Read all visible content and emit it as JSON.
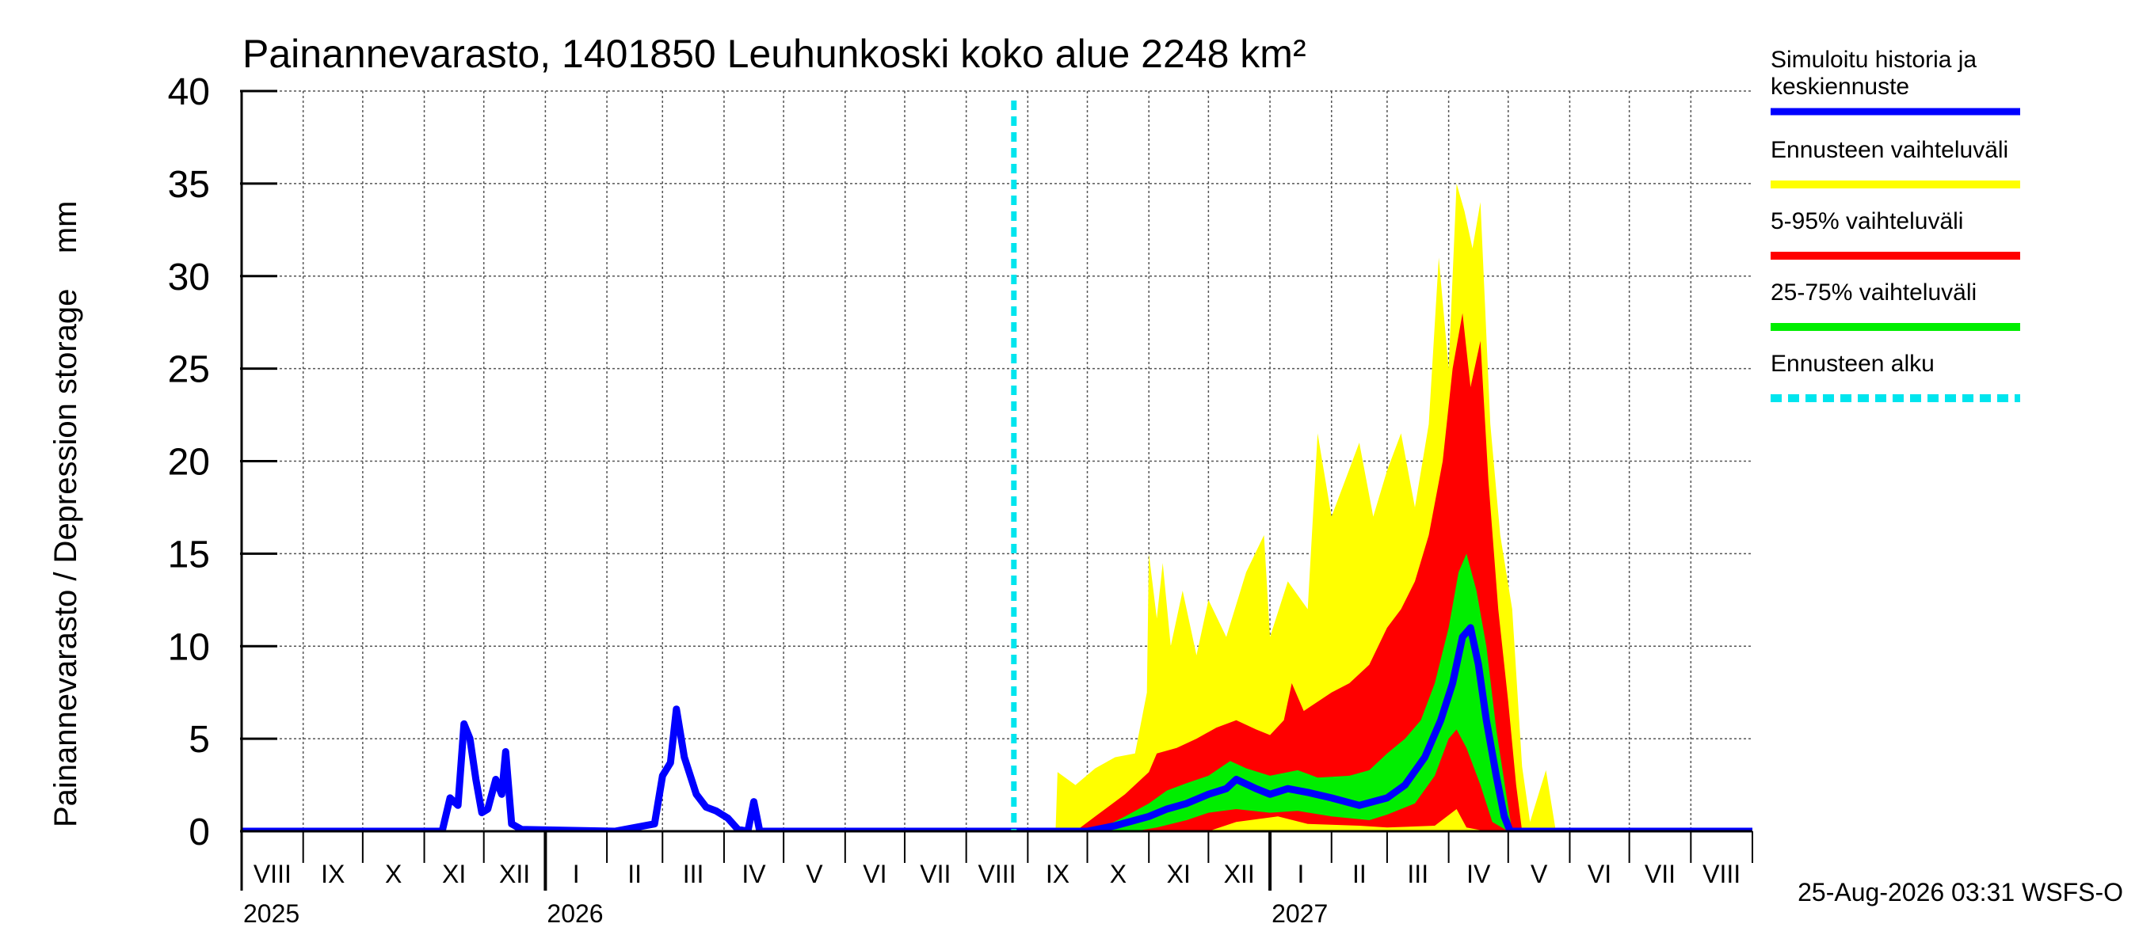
{
  "chart_data": {
    "type": "area",
    "title": "Painannevarasto, 1401850 Leuhunkoski koko alue 2248 km²",
    "ylabel": "Painannevarasto / Depression storage    mm",
    "ylim": [
      0,
      40
    ],
    "yticks": [
      0,
      5,
      10,
      15,
      20,
      25,
      30,
      35,
      40
    ],
    "xlim": [
      "2025-08-01",
      "2027-09-01"
    ],
    "grid": true,
    "legend_position": "right",
    "timestamp": "25-Aug-2026 03:31 WSFS-O",
    "forecast_start": "2026-08-25",
    "months": [
      {
        "label": "VIII",
        "start": "2025-08-01"
      },
      {
        "label": "IX",
        "start": "2025-09-01"
      },
      {
        "label": "X",
        "start": "2025-10-01"
      },
      {
        "label": "XI",
        "start": "2025-11-01"
      },
      {
        "label": "XII",
        "start": "2025-12-01"
      },
      {
        "label": "I",
        "start": "2026-01-01"
      },
      {
        "label": "II",
        "start": "2026-02-01"
      },
      {
        "label": "III",
        "start": "2026-03-01"
      },
      {
        "label": "IV",
        "start": "2026-04-01"
      },
      {
        "label": "V",
        "start": "2026-05-01"
      },
      {
        "label": "VI",
        "start": "2026-06-01"
      },
      {
        "label": "VII",
        "start": "2026-07-01"
      },
      {
        "label": "VIII",
        "start": "2026-08-01"
      },
      {
        "label": "IX",
        "start": "2026-09-01"
      },
      {
        "label": "X",
        "start": "2026-10-01"
      },
      {
        "label": "XI",
        "start": "2026-11-01"
      },
      {
        "label": "XII",
        "start": "2026-12-01"
      },
      {
        "label": "I",
        "start": "2027-01-01"
      },
      {
        "label": "II",
        "start": "2027-02-01"
      },
      {
        "label": "III",
        "start": "2027-03-01"
      },
      {
        "label": "IV",
        "start": "2027-04-01"
      },
      {
        "label": "V",
        "start": "2027-05-01"
      },
      {
        "label": "VI",
        "start": "2027-06-01"
      },
      {
        "label": "VII",
        "start": "2027-07-01"
      },
      {
        "label": "VIII",
        "start": "2027-08-01"
      }
    ],
    "years": [
      {
        "label": "2025",
        "start": "2025-08-01"
      },
      {
        "label": "2026",
        "start": "2026-01-01"
      },
      {
        "label": "2027",
        "start": "2027-01-01"
      }
    ],
    "colors": {
      "history": "#0000ff",
      "range_full": "#ffff00",
      "range_5_95": "#ff0000",
      "range_25_75": "#00ee00",
      "forecast_start": "#00e5ee",
      "grid": "#555555"
    },
    "legend": [
      {
        "label": "Simuloitu historia ja keskiennuste",
        "color": "#0000ff",
        "style": "solid"
      },
      {
        "label": "Ennusteen vaihteluväli",
        "color": "#ffff00",
        "style": "solid"
      },
      {
        "label": "5-95% vaihteluväli",
        "color": "#ff0000",
        "style": "solid"
      },
      {
        "label": "25-75% vaihteluväli",
        "color": "#00ee00",
        "style": "solid"
      },
      {
        "label": "Ennusteen alku",
        "color": "#00e5ee",
        "style": "dashed"
      }
    ],
    "series": [
      {
        "name": "Simuloitu historia ja keskiennuste",
        "kind": "line",
        "points": [
          [
            "2025-08-01",
            0
          ],
          [
            "2025-11-10",
            0
          ],
          [
            "2025-11-14",
            1.8
          ],
          [
            "2025-11-18",
            1.4
          ],
          [
            "2025-11-21",
            5.8
          ],
          [
            "2025-11-24",
            5.0
          ],
          [
            "2025-11-27",
            2.8
          ],
          [
            "2025-11-30",
            1.0
          ],
          [
            "2025-12-03",
            1.2
          ],
          [
            "2025-12-07",
            2.8
          ],
          [
            "2025-12-10",
            2.0
          ],
          [
            "2025-12-12",
            4.3
          ],
          [
            "2025-12-15",
            0.4
          ],
          [
            "2025-12-20",
            0.1
          ],
          [
            "2026-02-05",
            0
          ],
          [
            "2026-02-25",
            0.4
          ],
          [
            "2026-03-01",
            3.0
          ],
          [
            "2026-03-05",
            3.7
          ],
          [
            "2026-03-08",
            6.6
          ],
          [
            "2026-03-12",
            4.0
          ],
          [
            "2026-03-18",
            2.0
          ],
          [
            "2026-03-23",
            1.3
          ],
          [
            "2026-03-28",
            1.1
          ],
          [
            "2026-04-03",
            0.7
          ],
          [
            "2026-04-08",
            0.1
          ],
          [
            "2026-04-13",
            0
          ],
          [
            "2026-04-16",
            1.6
          ],
          [
            "2026-04-19",
            0
          ],
          [
            "2026-08-25",
            0
          ],
          [
            "2026-10-01",
            0
          ],
          [
            "2026-10-15",
            0.3
          ],
          [
            "2026-11-01",
            0.8
          ],
          [
            "2026-11-10",
            1.2
          ],
          [
            "2026-11-20",
            1.5
          ],
          [
            "2026-12-01",
            2.0
          ],
          [
            "2026-12-10",
            2.3
          ],
          [
            "2026-12-15",
            2.8
          ],
          [
            "2026-12-25",
            2.3
          ],
          [
            "2027-01-01",
            2.0
          ],
          [
            "2027-01-10",
            2.3
          ],
          [
            "2027-01-20",
            2.1
          ],
          [
            "2027-02-01",
            1.8
          ],
          [
            "2027-02-15",
            1.4
          ],
          [
            "2027-03-01",
            1.8
          ],
          [
            "2027-03-10",
            2.5
          ],
          [
            "2027-03-20",
            4.0
          ],
          [
            "2027-03-28",
            6.0
          ],
          [
            "2027-04-03",
            8.0
          ],
          [
            "2027-04-08",
            10.5
          ],
          [
            "2027-04-12",
            11.0
          ],
          [
            "2027-04-16",
            9.0
          ],
          [
            "2027-04-20",
            6.0
          ],
          [
            "2027-04-25",
            3.0
          ],
          [
            "2027-04-29",
            0.8
          ],
          [
            "2027-05-02",
            0
          ],
          [
            "2027-09-01",
            0
          ]
        ]
      },
      {
        "name": "Ennusteen vaihteluväli",
        "kind": "band",
        "upper": [
          [
            "2026-08-25",
            0
          ],
          [
            "2026-09-15",
            0
          ],
          [
            "2026-09-16",
            3.2
          ],
          [
            "2026-09-25",
            2.5
          ],
          [
            "2026-10-05",
            3.4
          ],
          [
            "2026-10-15",
            4.0
          ],
          [
            "2026-10-25",
            4.2
          ],
          [
            "2026-10-31",
            7.5
          ],
          [
            "2026-11-01",
            15.0
          ],
          [
            "2026-11-05",
            11.5
          ],
          [
            "2026-11-08",
            14.5
          ],
          [
            "2026-11-12",
            10.0
          ],
          [
            "2026-11-18",
            13.0
          ],
          [
            "2026-11-25",
            9.5
          ],
          [
            "2026-12-01",
            12.5
          ],
          [
            "2026-12-10",
            10.5
          ],
          [
            "2026-12-20",
            14.0
          ],
          [
            "2026-12-29",
            16.0
          ],
          [
            "2027-01-01",
            10.5
          ],
          [
            "2027-01-10",
            13.5
          ],
          [
            "2027-01-20",
            12.0
          ],
          [
            "2027-01-25",
            21.5
          ],
          [
            "2027-02-01",
            17.0
          ],
          [
            "2027-02-08",
            19.0
          ],
          [
            "2027-02-15",
            21.0
          ],
          [
            "2027-02-22",
            17.0
          ],
          [
            "2027-03-01",
            19.5
          ],
          [
            "2027-03-08",
            21.5
          ],
          [
            "2027-03-15",
            17.5
          ],
          [
            "2027-03-22",
            22.0
          ],
          [
            "2027-03-27",
            31.0
          ],
          [
            "2027-04-01",
            25.0
          ],
          [
            "2027-04-05",
            35.0
          ],
          [
            "2027-04-09",
            33.5
          ],
          [
            "2027-04-13",
            31.5
          ],
          [
            "2027-04-17",
            34.0
          ],
          [
            "2027-04-22",
            22.0
          ],
          [
            "2027-04-27",
            16.0
          ],
          [
            "2027-05-03",
            12.0
          ],
          [
            "2027-05-08",
            3.5
          ],
          [
            "2027-05-12",
            0.5
          ],
          [
            "2027-05-20",
            3.3
          ],
          [
            "2027-05-25",
            0
          ]
        ],
        "lower": [
          [
            "2026-08-25",
            0
          ],
          [
            "2027-05-25",
            0
          ]
        ]
      },
      {
        "name": "5-95% vaihteluväli",
        "kind": "band",
        "upper": [
          [
            "2026-08-25",
            0
          ],
          [
            "2026-09-25",
            0
          ],
          [
            "2026-10-05",
            0.8
          ],
          [
            "2026-10-20",
            2.0
          ],
          [
            "2026-11-01",
            3.2
          ],
          [
            "2026-11-05",
            4.2
          ],
          [
            "2026-11-15",
            4.5
          ],
          [
            "2026-11-25",
            5.0
          ],
          [
            "2026-12-05",
            5.6
          ],
          [
            "2026-12-15",
            6.0
          ],
          [
            "2026-12-25",
            5.5
          ],
          [
            "2027-01-01",
            5.2
          ],
          [
            "2027-01-08",
            6.0
          ],
          [
            "2027-01-12",
            8.0
          ],
          [
            "2027-01-18",
            6.5
          ],
          [
            "2027-02-01",
            7.5
          ],
          [
            "2027-02-10",
            8.0
          ],
          [
            "2027-02-20",
            9.0
          ],
          [
            "2027-03-01",
            11.0
          ],
          [
            "2027-03-08",
            12.0
          ],
          [
            "2027-03-15",
            13.5
          ],
          [
            "2027-03-22",
            16.0
          ],
          [
            "2027-03-29",
            20.0
          ],
          [
            "2027-04-03",
            25.0
          ],
          [
            "2027-04-08",
            28.0
          ],
          [
            "2027-04-12",
            24.0
          ],
          [
            "2027-04-17",
            26.5
          ],
          [
            "2027-04-21",
            19.0
          ],
          [
            "2027-04-26",
            12.0
          ],
          [
            "2027-05-01",
            7.0
          ],
          [
            "2027-05-05",
            2.5
          ],
          [
            "2027-05-08",
            0
          ]
        ],
        "lower": [
          [
            "2026-08-25",
            0
          ],
          [
            "2026-12-01",
            0
          ],
          [
            "2026-12-15",
            0.5
          ],
          [
            "2027-01-05",
            0.8
          ],
          [
            "2027-01-20",
            0.4
          ],
          [
            "2027-02-15",
            0.3
          ],
          [
            "2027-03-01",
            0.2
          ],
          [
            "2027-03-25",
            0.3
          ],
          [
            "2027-04-05",
            1.2
          ],
          [
            "2027-04-10",
            0.2
          ],
          [
            "2027-04-20",
            0
          ],
          [
            "2027-05-08",
            0
          ]
        ]
      },
      {
        "name": "25-75% vaihteluväli",
        "kind": "band",
        "upper": [
          [
            "2026-08-25",
            0
          ],
          [
            "2026-10-05",
            0
          ],
          [
            "2026-10-20",
            0.8
          ],
          [
            "2026-11-01",
            1.5
          ],
          [
            "2026-11-10",
            2.2
          ],
          [
            "2026-11-20",
            2.6
          ],
          [
            "2026-12-01",
            3.0
          ],
          [
            "2026-12-12",
            3.8
          ],
          [
            "2026-12-20",
            3.4
          ],
          [
            "2027-01-01",
            3.0
          ],
          [
            "2027-01-15",
            3.3
          ],
          [
            "2027-01-25",
            2.9
          ],
          [
            "2027-02-10",
            3.0
          ],
          [
            "2027-02-20",
            3.3
          ],
          [
            "2027-03-01",
            4.2
          ],
          [
            "2027-03-10",
            5.0
          ],
          [
            "2027-03-18",
            6.0
          ],
          [
            "2027-03-25",
            8.0
          ],
          [
            "2027-04-01",
            11.0
          ],
          [
            "2027-04-06",
            14.0
          ],
          [
            "2027-04-10",
            15.0
          ],
          [
            "2027-04-15",
            13.0
          ],
          [
            "2027-04-20",
            10.0
          ],
          [
            "2027-04-25",
            5.5
          ],
          [
            "2027-04-30",
            2.0
          ],
          [
            "2027-05-03",
            0
          ]
        ],
        "lower": [
          [
            "2026-08-25",
            0
          ],
          [
            "2026-10-25",
            0
          ],
          [
            "2026-11-05",
            0.2
          ],
          [
            "2026-11-20",
            0.6
          ],
          [
            "2026-12-01",
            1.0
          ],
          [
            "2026-12-15",
            1.2
          ],
          [
            "2027-01-01",
            1.0
          ],
          [
            "2027-01-15",
            1.1
          ],
          [
            "2027-02-01",
            0.8
          ],
          [
            "2027-02-20",
            0.6
          ],
          [
            "2027-03-01",
            0.9
          ],
          [
            "2027-03-15",
            1.5
          ],
          [
            "2027-03-25",
            3.0
          ],
          [
            "2027-04-01",
            5.0
          ],
          [
            "2027-04-05",
            5.5
          ],
          [
            "2027-04-10",
            4.5
          ],
          [
            "2027-04-17",
            2.5
          ],
          [
            "2027-04-23",
            0.5
          ],
          [
            "2027-05-01",
            0
          ]
        ]
      }
    ]
  }
}
